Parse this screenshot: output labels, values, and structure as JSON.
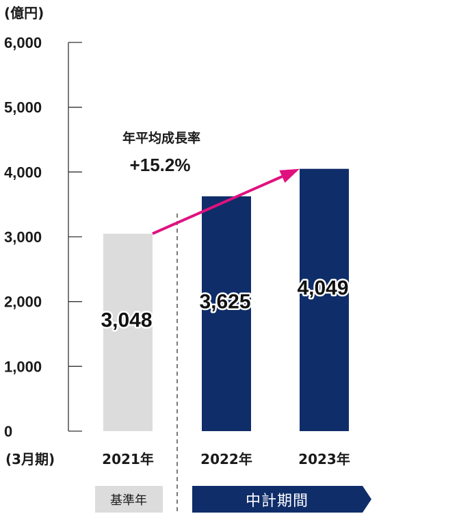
{
  "chart_data": {
    "type": "bar",
    "unit_label": "(億円)",
    "period_label": "(3月期)",
    "categories": [
      "2021年",
      "2022年",
      "2023年"
    ],
    "values": [
      3048,
      3625,
      4049
    ],
    "value_labels": [
      "3,048",
      "3,625",
      "4,049"
    ],
    "ylim": [
      0,
      6000
    ],
    "yticks": [
      0,
      1000,
      2000,
      3000,
      4000,
      5000,
      6000
    ],
    "ytick_labels": [
      "0",
      "1,000",
      "2,000",
      "3,000",
      "4,000",
      "5,000",
      "6,000"
    ],
    "bar_colors": [
      "#dcdcdc",
      "#0f2d69",
      "#0f2d69"
    ],
    "annotation": {
      "title": "年平均成長率",
      "value": "+15.2%",
      "arrow_color": "#e0117f",
      "from_category": "2021年",
      "to_category": "2023年"
    },
    "groups": [
      {
        "label": "基準年",
        "categories": [
          "2021年"
        ],
        "color": "#dcdcdc"
      },
      {
        "label": "中計期間",
        "categories": [
          "2022年",
          "2023年"
        ],
        "color": "#0f2d69"
      }
    ],
    "grid": false
  }
}
